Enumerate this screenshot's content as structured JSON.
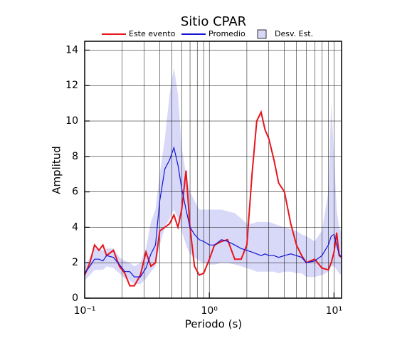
{
  "chart_data": {
    "type": "line",
    "title": "Sitio CPAR",
    "x_label": "Periodo (s)",
    "y_label": "Amplitud",
    "log_x": true,
    "grid": true,
    "x": [
      0.1,
      0.11,
      0.12,
      0.13,
      0.14,
      0.15,
      0.17,
      0.19,
      0.21,
      0.23,
      0.25,
      0.28,
      0.31,
      0.34,
      0.37,
      0.4,
      0.44,
      0.48,
      0.52,
      0.56,
      0.6,
      0.65,
      0.7,
      0.76,
      0.83,
      0.9,
      1.0,
      1.1,
      1.25,
      1.4,
      1.6,
      1.8,
      2.0,
      2.2,
      2.4,
      2.6,
      2.8,
      3.0,
      3.3,
      3.6,
      4.0,
      4.5,
      5.0,
      5.5,
      6,
      7,
      8,
      9,
      9.5,
      10,
      10.5,
      11,
      11.5
    ],
    "series": [
      {
        "name": "Este evento",
        "color": "#e8141c",
        "values": [
          1.3,
          2.0,
          3.0,
          2.7,
          3.0,
          2.4,
          2.7,
          1.8,
          1.4,
          0.7,
          0.7,
          1.3,
          2.6,
          1.8,
          2.0,
          3.8,
          4.0,
          4.2,
          4.7,
          4.0,
          5.0,
          7.2,
          4.0,
          1.8,
          1.3,
          1.4,
          2.2,
          3.0,
          3.2,
          3.3,
          2.2,
          2.2,
          3.0,
          7.0,
          10.0,
          10.5,
          9.5,
          9.0,
          7.8,
          6.5,
          6.0,
          4.2,
          3.0,
          2.4,
          2.0,
          2.2,
          1.7,
          1.6,
          2.0,
          2.6,
          3.7,
          2.4,
          2.3
        ]
      },
      {
        "name": "Promedio",
        "color": "#1414d8",
        "values": [
          1.4,
          1.8,
          2.2,
          2.2,
          2.1,
          2.4,
          2.3,
          1.9,
          1.5,
          1.5,
          1.2,
          1.2,
          1.7,
          2.5,
          3.0,
          5.5,
          7.3,
          7.8,
          8.5,
          7.5,
          6.2,
          5.0,
          4.0,
          3.6,
          3.3,
          3.2,
          3.0,
          3.0,
          3.3,
          3.2,
          3.0,
          2.8,
          2.7,
          2.6,
          2.5,
          2.4,
          2.5,
          2.4,
          2.4,
          2.3,
          2.4,
          2.5,
          2.4,
          2.3,
          2.0,
          2.1,
          2.4,
          3.0,
          3.5,
          3.6,
          3.0,
          2.5,
          2.3
        ]
      }
    ],
    "band": {
      "name": "Desv. Est.",
      "color": "#d8d8f8",
      "lower": [
        1.0,
        1.3,
        1.6,
        1.6,
        1.6,
        1.8,
        1.7,
        1.4,
        1.1,
        1.0,
        0.8,
        0.8,
        1.1,
        1.5,
        1.8,
        3.0,
        4.0,
        4.5,
        5.0,
        4.5,
        3.8,
        3.0,
        2.5,
        2.3,
        2.1,
        2.0,
        1.9,
        1.9,
        2.0,
        2.0,
        1.9,
        1.8,
        1.7,
        1.6,
        1.5,
        1.5,
        1.5,
        1.5,
        1.5,
        1.4,
        1.5,
        1.5,
        1.4,
        1.4,
        1.2,
        1.2,
        1.3,
        1.5,
        1.8,
        1.8,
        1.6,
        1.4,
        1.3
      ],
      "upper": [
        1.8,
        2.3,
        2.8,
        2.8,
        2.7,
        2.8,
        2.8,
        2.3,
        2.1,
        2.0,
        1.8,
        2.0,
        2.8,
        4.3,
        5.0,
        7.0,
        9.0,
        11.5,
        13.0,
        11.5,
        8.5,
        7.0,
        6.0,
        5.5,
        5.0,
        5.0,
        5.0,
        5.0,
        5.0,
        4.9,
        4.8,
        4.5,
        4.2,
        4.2,
        4.3,
        4.3,
        4.3,
        4.3,
        4.2,
        4.1,
        4.0,
        3.9,
        3.8,
        3.6,
        3.5,
        3.2,
        3.8,
        6.0,
        11.0,
        8.0,
        5.0,
        4.0,
        3.7
      ]
    },
    "xlim": [
      0.1,
      11.5
    ],
    "xticks": [
      {
        "value": 0.1,
        "label": "10⁻¹"
      },
      {
        "value": 1,
        "label": "10⁰"
      },
      {
        "value": 10,
        "label": "10¹"
      }
    ],
    "xgrid": [
      0.2,
      0.3,
      0.4,
      0.5,
      0.6,
      0.7,
      0.8,
      0.9,
      2,
      3,
      4,
      5,
      6,
      7,
      8,
      9
    ],
    "ylim": [
      0,
      14.5
    ],
    "yticks": [
      0,
      2,
      4,
      6,
      8,
      10,
      12,
      14
    ]
  }
}
